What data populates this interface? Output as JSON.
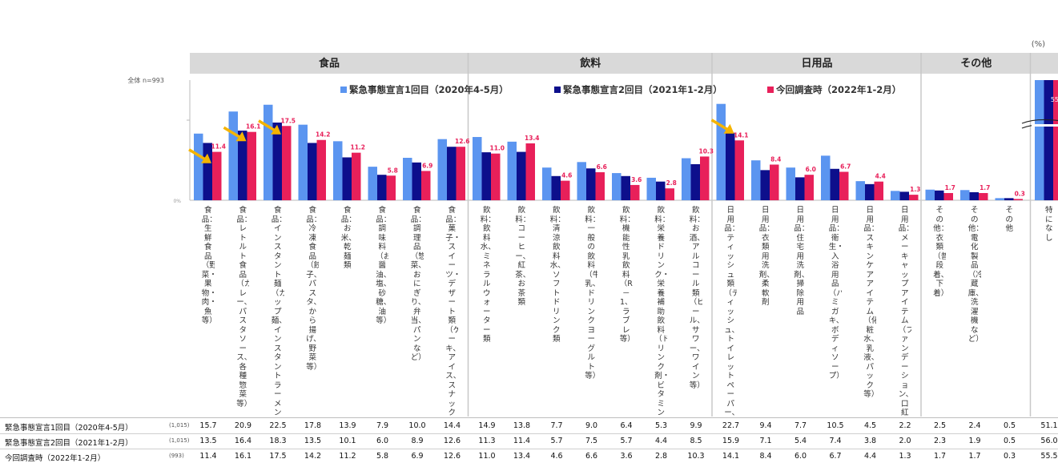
{
  "unit": "(%)",
  "base_label": "全体 n=993",
  "zero_label": "0%",
  "groups": [
    {
      "name": "食品",
      "count": 8
    },
    {
      "name": "飲料",
      "count": 7
    },
    {
      "name": "日用品",
      "count": 6
    },
    {
      "name": "その他",
      "count": 3
    }
  ],
  "colors": {
    "wave1": "#5b95f0",
    "wave2": "#0d0f8c",
    "current": "#e8205a",
    "arrow": "#f5b400",
    "header": "#d9d9d9"
  },
  "chart_data": {
    "type": "bar",
    "categories": [
      "食品：生鮮食品（野菜・果物・肉・魚等）",
      "食品：レトルト食品（カレー、パスタソース、各種惣菜等）",
      "食品：インスタント麺（カップ麺、インスタントラーメン等）",
      "食品：冷凍食品（餃子、パスタ、から揚げ、野菜等）",
      "食品：お米、乾麺類",
      "食品：調味料（お醤油、塩、砂糖、油等）",
      "食品：調理品（惣菜、おにぎり、弁当、パンなど）",
      "食品：菓子・スイーツ・デザート類（ケーキ、アイス、スナック菓子等）",
      "飲料：飲料水、ミネラルウォーター類",
      "飲料：コーヒー、紅茶、お茶類",
      "飲料：清涼飲料水、ソフトドリンク類",
      "飲料：一般の飲料（牛乳、ドリンクヨーグルト等）",
      "飲料：機能性乳飲料（R－1、ラブレ等）",
      "飲料：栄養ドリンク・栄養補助飲料（ドリンク剤・ビタミンドリンクなど）",
      "飲料：お酒、アルコール類（ビール、サワー、ワイン等）",
      "日用品：ティッシュ類（ティッシュ、トイレットペーパー、キッチンペーパー）",
      "日用品：衣類用洗剤、柔軟剤",
      "日用品：住宅用洗剤、掃除用品",
      "日用品：衛生・入浴用品（ハミガキ、ボディソープ）",
      "日用品：スキンケアアイテム（化粧水、乳液、パック等）",
      "日用品：メーキャップアイテム（ファンデーション、口紅等）",
      "その他：衣類（普段着、下着）",
      "その他：電化製品（冷蔵庫、洗濯機など）",
      "その他",
      "特になし"
    ],
    "series": [
      {
        "name": "緊急事態宣言1回目（2020年4-5月）",
        "short": "緊急事態宣言1回目（2020年4-5月）",
        "n": "(1,015)",
        "values": [
          15.7,
          20.9,
          22.5,
          17.8,
          13.9,
          7.9,
          10.0,
          14.4,
          14.9,
          13.8,
          7.7,
          9.0,
          6.4,
          5.3,
          9.9,
          22.7,
          9.4,
          7.7,
          10.5,
          4.5,
          2.2,
          2.5,
          2.4,
          0.5,
          51.1
        ]
      },
      {
        "name": "緊急事態宣言2回目（2021年1-2月）",
        "short": "緊急事態宣言2回目（2021年1-2月）",
        "n": "(1,015)",
        "values": [
          13.5,
          16.4,
          18.3,
          13.5,
          10.1,
          6.0,
          8.9,
          12.6,
          11.3,
          11.4,
          5.7,
          7.5,
          5.7,
          4.4,
          8.5,
          15.9,
          7.1,
          5.4,
          7.4,
          3.8,
          2.0,
          2.3,
          1.9,
          0.5,
          56.0
        ]
      },
      {
        "name": "今回調査時（2022年1-2月）",
        "short": "今回調査時（2022年1-2月）",
        "n": "(993)",
        "values": [
          11.4,
          16.1,
          17.5,
          14.2,
          11.2,
          5.8,
          6.9,
          12.6,
          11.0,
          13.4,
          4.6,
          6.6,
          3.6,
          2.8,
          10.3,
          14.1,
          8.4,
          6.0,
          6.7,
          4.4,
          1.3,
          1.7,
          1.7,
          0.3,
          55.5
        ]
      }
    ],
    "arrows_at": [
      0,
      1,
      2,
      15
    ],
    "broken_axis_category": 24,
    "legend_position": "top",
    "data_labels_series": 2
  }
}
